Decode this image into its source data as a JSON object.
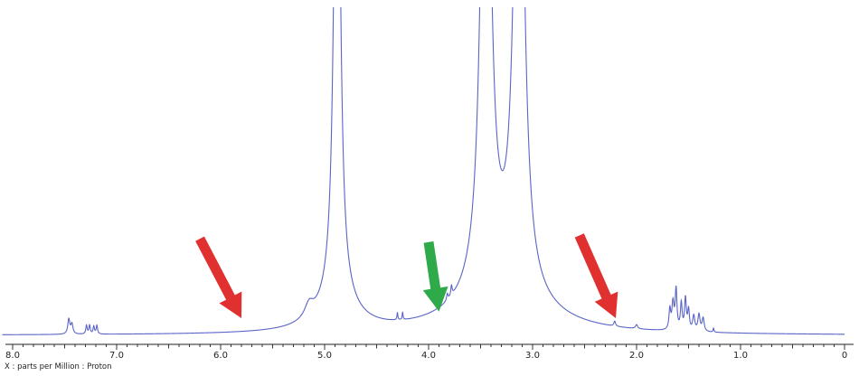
{
  "chart_data": {
    "type": "line",
    "xlabel": "X : parts per Million : Proton",
    "x_reversed": true,
    "xlim": [
      0,
      8.1
    ],
    "ylim": [
      0,
      100
    ],
    "x_ticks": [
      "8.0",
      "7.0",
      "6.0",
      "5.0",
      "4.0",
      "3.0",
      "2.0",
      "1.0",
      "0"
    ],
    "grid": false,
    "line_color": "#5a64c8",
    "baseline_y": 0.8,
    "peaks": [
      {
        "x": 7.46,
        "h": 4.5,
        "w": 0.012
      },
      {
        "x": 7.43,
        "h": 3.0,
        "w": 0.012
      },
      {
        "x": 7.29,
        "h": 2.6,
        "w": 0.008
      },
      {
        "x": 7.26,
        "h": 2.6,
        "w": 0.008
      },
      {
        "x": 7.22,
        "h": 2.3,
        "w": 0.008
      },
      {
        "x": 7.19,
        "h": 2.6,
        "w": 0.008
      },
      {
        "x": 5.15,
        "h": 4.0,
        "w": 0.05
      },
      {
        "x": 4.88,
        "h": 9.0,
        "w": 0.2
      },
      {
        "x": 4.88,
        "h": 200,
        "w": 0.032
      },
      {
        "x": 4.3,
        "h": 2.2,
        "w": 0.005
      },
      {
        "x": 4.25,
        "h": 2.2,
        "w": 0.005
      },
      {
        "x": 3.78,
        "h": 3.0,
        "w": 0.008
      },
      {
        "x": 3.82,
        "h": 2.0,
        "w": 0.008
      },
      {
        "x": 3.3,
        "h": 14.0,
        "w": 0.42
      },
      {
        "x": 3.45,
        "h": 200,
        "w": 0.05
      },
      {
        "x": 3.13,
        "h": 200,
        "w": 0.05
      },
      {
        "x": 2.21,
        "h": 1.5,
        "w": 0.01
      },
      {
        "x": 2.0,
        "h": 1.2,
        "w": 0.012
      },
      {
        "x": 1.65,
        "h": 8.0,
        "w": 0.012
      },
      {
        "x": 1.62,
        "h": 12.0,
        "w": 0.01
      },
      {
        "x": 1.68,
        "h": 6.0,
        "w": 0.01
      },
      {
        "x": 1.57,
        "h": 8.0,
        "w": 0.01
      },
      {
        "x": 1.53,
        "h": 9.5,
        "w": 0.01
      },
      {
        "x": 1.5,
        "h": 6.0,
        "w": 0.01
      },
      {
        "x": 1.45,
        "h": 4.5,
        "w": 0.012
      },
      {
        "x": 1.4,
        "h": 5.0,
        "w": 0.012
      },
      {
        "x": 1.36,
        "h": 4.0,
        "w": 0.012
      },
      {
        "x": 1.26,
        "h": 1.2,
        "w": 0.005
      }
    ],
    "annotations": [
      {
        "name": "red-arrow-left",
        "color": "#e03030",
        "from": [
          6.2,
          30
        ],
        "to": [
          5.8,
          6
        ]
      },
      {
        "name": "green-arrow",
        "color": "#2eaa4a",
        "from": [
          4.0,
          29
        ],
        "to": [
          3.9,
          8
        ]
      },
      {
        "name": "red-arrow-right",
        "color": "#e03030",
        "from": [
          2.55,
          31
        ],
        "to": [
          2.2,
          6
        ]
      }
    ]
  }
}
